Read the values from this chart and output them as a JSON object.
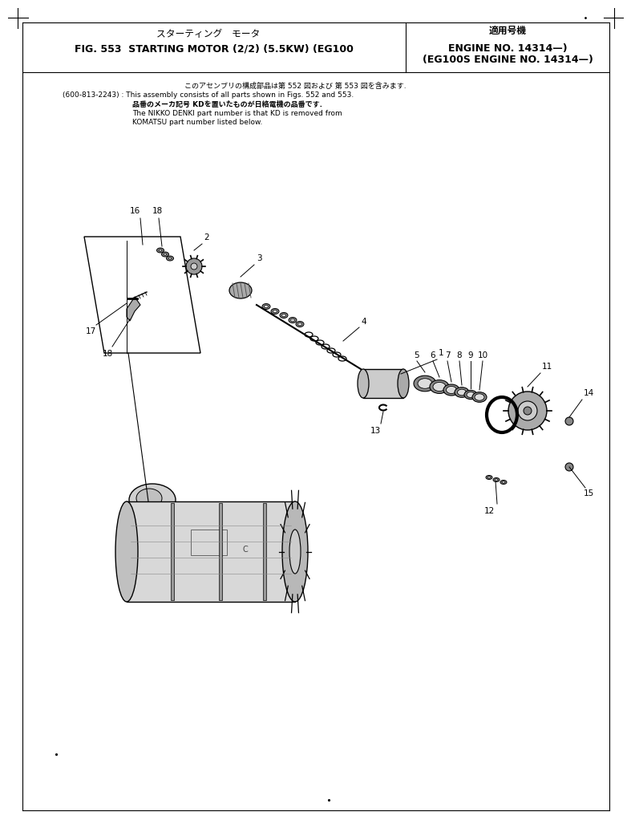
{
  "title_japanese": "スターティング　モータ",
  "title_right_jp": "適用号機",
  "title_eng1": "FIG. 553  STARTING MOTOR (2/2) (5.5KW) (EG100   ENGINE NO. 14314—)",
  "title_eng2": "(EG100S ENGINE NO. 14314—)",
  "note_jp1": "このアセンブリの構成部品は第 552 図および 第 553 図を含みます.",
  "note_en1": "(600-813-2243) : This assembly consists of all parts shown in Figs. 552 and 553.",
  "note_jp2": "品番のメーカ記号 KDを置いたものが日絡電機の品番です.",
  "note_en2": "The NIKKO DENKI part number is that KD is removed from",
  "note_en3": "KOMATSU part number listed below.",
  "bg_color": "#ffffff",
  "text_color": "#000000"
}
